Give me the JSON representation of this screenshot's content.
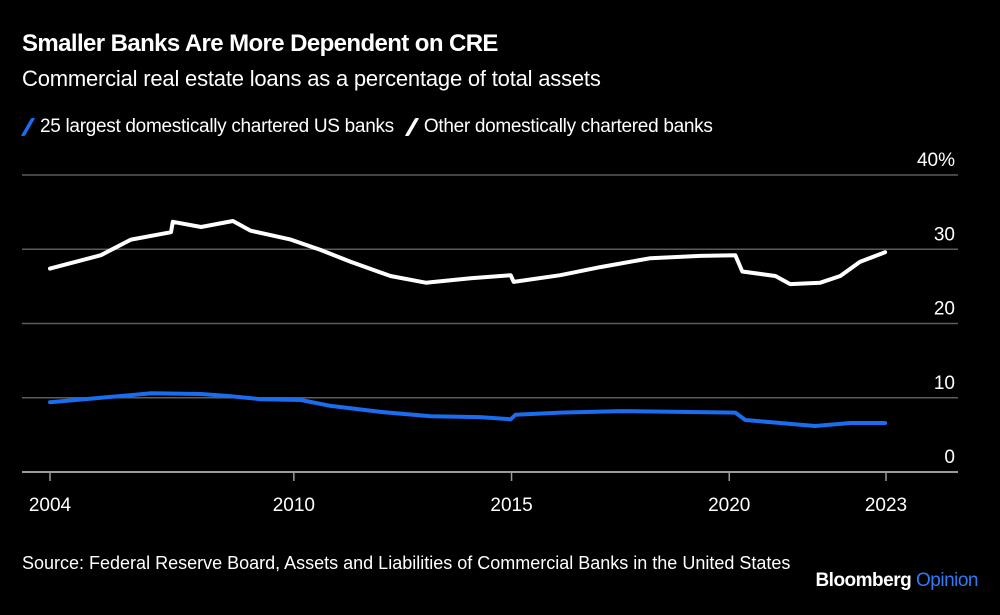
{
  "chart_data": {
    "type": "line",
    "title": "Smaller Banks Are More Dependent on CRE",
    "subtitle": "Commercial real estate loans as a percentage of total assets",
    "xlabel": "",
    "ylabel": "",
    "x_range": [
      2004.4,
      2023.6
    ],
    "ylim": [
      0,
      40
    ],
    "y_ticks": [
      {
        "value": 40,
        "label": "40%"
      },
      {
        "value": 30,
        "label": "30"
      },
      {
        "value": 20,
        "label": "20"
      },
      {
        "value": 10,
        "label": "10"
      },
      {
        "value": 0,
        "label": "0"
      }
    ],
    "x_ticks": [
      {
        "value": 2004.4,
        "label": "2004"
      },
      {
        "value": 2010,
        "label": "2010"
      },
      {
        "value": 2015,
        "label": "2015"
      },
      {
        "value": 2020,
        "label": "2020"
      },
      {
        "value": 2023.6,
        "label": "2023"
      }
    ],
    "grid": true,
    "legend_position": "top-left",
    "series": [
      {
        "name": "25 largest domestically chartered US banks",
        "color": "#1a6cf0",
        "x": [
          2004.4,
          2005.57,
          2006.72,
          2007.87,
          2008.56,
          2009.24,
          2010.16,
          2010.85,
          2011.99,
          2013.14,
          2014.28,
          2014.98,
          2015.09,
          2016.12,
          2017.5,
          2018.88,
          2020.14,
          2020.37,
          2021.17,
          2021.97,
          2022.78,
          2023.58
        ],
        "y": [
          9.4,
          10.0,
          10.6,
          10.5,
          10.2,
          9.8,
          9.7,
          8.9,
          8.1,
          7.5,
          7.4,
          7.1,
          7.7,
          8.0,
          8.2,
          8.1,
          8.0,
          7.0,
          6.6,
          6.2,
          6.6,
          6.6
        ]
      },
      {
        "name": "Other domestically chartered banks",
        "color": "#ffffff",
        "x": [
          2004.4,
          2005.57,
          2006.26,
          2007.18,
          2007.22,
          2007.87,
          2008.6,
          2009.01,
          2009.93,
          2010.62,
          2011.31,
          2012.22,
          2013.03,
          2014.06,
          2014.98,
          2015.05,
          2016.12,
          2017.04,
          2018.19,
          2019.33,
          2020.14,
          2020.3,
          2021.06,
          2021.4,
          2022.09,
          2022.55,
          2023.0,
          2023.58
        ],
        "y": [
          27.4,
          29.2,
          31.3,
          32.3,
          33.7,
          33.0,
          33.8,
          32.5,
          31.3,
          29.9,
          28.3,
          26.4,
          25.5,
          26.1,
          26.5,
          25.6,
          26.5,
          27.6,
          28.8,
          29.1,
          29.2,
          27.0,
          26.4,
          25.3,
          25.5,
          26.4,
          28.3,
          29.6
        ]
      }
    ]
  },
  "source": "Source: Federal Reserve Board, Assets and Liabilities of Commercial Banks in the United States",
  "brand": {
    "name": "Bloomberg",
    "section": "Opinion",
    "section_color": "#2f7bf5"
  }
}
